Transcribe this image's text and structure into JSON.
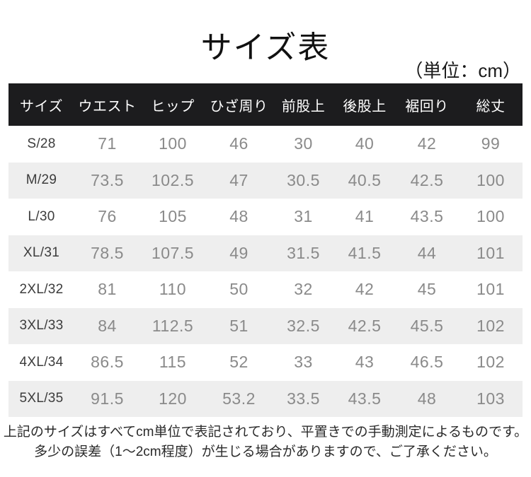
{
  "page": {
    "title": "サイズ表",
    "unit_note": "（単位：cm）"
  },
  "table": {
    "columns": [
      "サイズ",
      "ウエスト",
      "ヒップ",
      "ひざ周り",
      "前股上",
      "後股上",
      "裾回り",
      "総丈"
    ],
    "rows": [
      {
        "size": "S/28",
        "values": [
          "71",
          "100",
          "46",
          "30",
          "40",
          "42",
          "99"
        ]
      },
      {
        "size": "M/29",
        "values": [
          "73.5",
          "102.5",
          "47",
          "30.5",
          "40.5",
          "42.5",
          "100"
        ]
      },
      {
        "size": "L/30",
        "values": [
          "76",
          "105",
          "48",
          "31",
          "41",
          "43.5",
          "100"
        ]
      },
      {
        "size": "XL/31",
        "values": [
          "78.5",
          "107.5",
          "49",
          "31.5",
          "41.5",
          "44",
          "101"
        ]
      },
      {
        "size": "2XL/32",
        "values": [
          "81",
          "110",
          "50",
          "32",
          "42",
          "45",
          "101"
        ]
      },
      {
        "size": "3XL/33",
        "values": [
          "84",
          "112.5",
          "51",
          "32.5",
          "42.5",
          "45.5",
          "102"
        ]
      },
      {
        "size": "4XL/34",
        "values": [
          "86.5",
          "115",
          "52",
          "33",
          "43",
          "46.5",
          "102"
        ]
      },
      {
        "size": "5XL/35",
        "values": [
          "91.5",
          "120",
          "53.2",
          "33.5",
          "43.5",
          "48",
          "103"
        ]
      }
    ]
  },
  "footer": {
    "line1": "上記のサイズはすべてcm単位で表記されており、平置きでの手動測定によるものです。",
    "line2": "多少の誤差（1～2cm程度）が生じる場合がありますので、ご了承ください。"
  },
  "colors": {
    "header_bg": "#1c1c1e",
    "header_text": "#ffffff",
    "row_bg": "#ffffff",
    "row_alt_bg": "#eeeeee",
    "size_text": "#3c3c3c",
    "number_text": "#8a8a8a",
    "title_text": "#111111",
    "footer_text": "#2a2a2a"
  }
}
